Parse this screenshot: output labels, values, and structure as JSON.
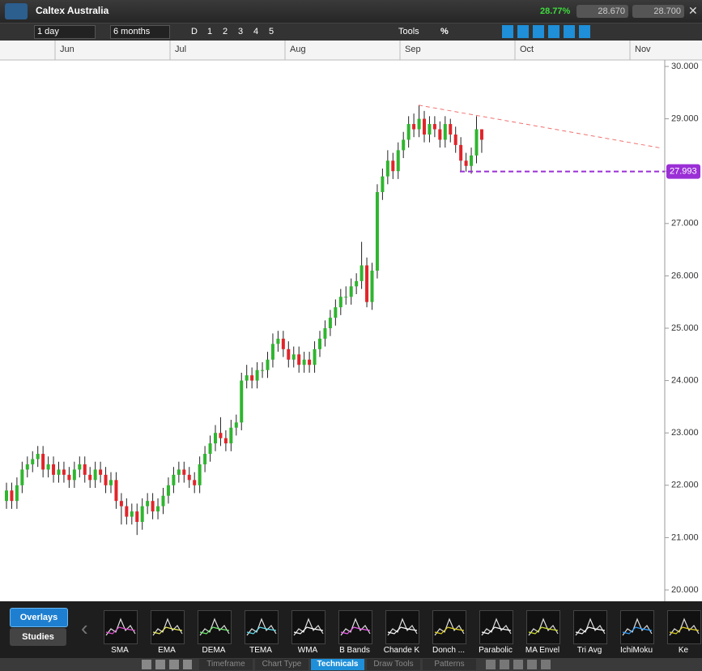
{
  "header": {
    "title": "Caltex Australia",
    "change": "28.77%",
    "bid": "28.670",
    "ask": "28.700"
  },
  "toolbar": {
    "interval": "1 day",
    "range": "6 months",
    "periods": [
      "D",
      "1",
      "2",
      "3",
      "4",
      "5"
    ],
    "tools": "Tools",
    "percent": "%"
  },
  "chart_data": {
    "type": "candlestick",
    "x_labels": [
      "Jun",
      "Jul",
      "Aug",
      "Sep",
      "Oct",
      "Nov"
    ],
    "ylim": [
      20,
      30
    ],
    "yticks": [
      {
        "value": 30,
        "label": "30.000"
      },
      {
        "value": 29,
        "label": "29.000"
      },
      {
        "value": 28,
        "label": "28.000"
      },
      {
        "value": 27,
        "label": "27.000"
      },
      {
        "value": 26,
        "label": "26.000"
      },
      {
        "value": 25,
        "label": "25.000"
      },
      {
        "value": 24,
        "label": "24.000"
      },
      {
        "value": 23,
        "label": "23.000"
      },
      {
        "value": 22,
        "label": "22.000"
      },
      {
        "value": 21,
        "label": "21.000"
      },
      {
        "value": 20,
        "label": "20.000"
      }
    ],
    "up_color": "#2fb52f",
    "down_color": "#e0252b",
    "series": [
      {
        "open": [
          21.7,
          21.9,
          21.7,
          22.0,
          22.3,
          22.4,
          22.5,
          22.6,
          22.3,
          22.4,
          22.2,
          22.3,
          22.2,
          22.1,
          22.3,
          22.4,
          22.2,
          22.1,
          22.3,
          22.2,
          22.0,
          22.1,
          21.7,
          21.6,
          21.4,
          21.5,
          21.3,
          21.6,
          21.7,
          21.5,
          21.6,
          21.8,
          22.0,
          22.2,
          22.3,
          22.2,
          22.1,
          22.0,
          22.4,
          22.6,
          22.8,
          23.0,
          22.9,
          22.8,
          23.1,
          23.2,
          24.0,
          24.1,
          24.0,
          24.2,
          24.2,
          24.4,
          24.7,
          24.8,
          24.6,
          24.4,
          24.5,
          24.3,
          24.4,
          24.3,
          24.6,
          24.8,
          25.0,
          25.2,
          25.4,
          25.6,
          25.6,
          25.8,
          25.9,
          26.2,
          25.5,
          26.1,
          27.6,
          27.9,
          28.2,
          28.0,
          28.4,
          28.6,
          28.9,
          28.8,
          29.0,
          28.7,
          28.9,
          28.8,
          28.6,
          28.9,
          28.7,
          28.5,
          28.2,
          28.1,
          28.3,
          28.8
        ],
        "high": [
          22.05,
          22.05,
          22.15,
          22.45,
          22.55,
          22.65,
          22.75,
          22.75,
          22.55,
          22.55,
          22.45,
          22.45,
          22.35,
          22.45,
          22.55,
          22.55,
          22.35,
          22.45,
          22.45,
          22.35,
          22.25,
          22.25,
          21.85,
          21.75,
          21.65,
          21.65,
          21.75,
          21.85,
          21.85,
          21.75,
          21.95,
          22.15,
          22.35,
          22.45,
          22.45,
          22.35,
          22.25,
          22.55,
          22.75,
          22.95,
          23.15,
          23.3,
          23.05,
          23.25,
          23.35,
          24.15,
          24.3,
          24.25,
          24.35,
          24.35,
          24.55,
          24.9,
          24.95,
          24.95,
          24.75,
          24.65,
          24.65,
          24.55,
          24.55,
          24.75,
          24.95,
          25.15,
          25.35,
          25.55,
          25.75,
          25.8,
          25.95,
          26.05,
          26.65,
          26.35,
          26.25,
          27.75,
          28.05,
          28.4,
          28.35,
          28.55,
          28.75,
          29.05,
          29.1,
          29.26,
          29.15,
          29.05,
          29.05,
          28.95,
          29.05,
          29.0,
          28.85,
          28.65,
          28.35,
          28.45,
          29.05,
          28.75
        ],
        "low": [
          21.55,
          21.55,
          21.55,
          21.85,
          22.15,
          22.25,
          22.35,
          22.15,
          22.15,
          22.05,
          22.05,
          22.05,
          21.95,
          21.95,
          22.15,
          22.05,
          21.95,
          21.95,
          22.05,
          21.85,
          21.85,
          21.55,
          21.25,
          21.25,
          21.25,
          21.05,
          21.15,
          21.45,
          21.35,
          21.35,
          21.45,
          21.65,
          21.85,
          22.05,
          22.05,
          21.95,
          21.85,
          21.85,
          22.25,
          22.45,
          22.65,
          22.75,
          22.65,
          22.65,
          22.95,
          23.05,
          23.85,
          23.85,
          23.85,
          24.05,
          24.05,
          24.25,
          24.55,
          24.45,
          24.25,
          24.25,
          24.15,
          24.15,
          24.15,
          24.15,
          24.45,
          24.65,
          24.85,
          25.05,
          25.25,
          25.45,
          25.45,
          25.65,
          25.75,
          25.4,
          25.35,
          25.95,
          27.45,
          27.75,
          27.85,
          27.85,
          28.25,
          28.45,
          28.65,
          28.65,
          28.55,
          28.55,
          28.65,
          28.45,
          28.45,
          28.55,
          28.35,
          28.0,
          27.99,
          27.95,
          28.15,
          28.35
        ],
        "close": [
          21.9,
          21.7,
          22.0,
          22.3,
          22.4,
          22.5,
          22.6,
          22.3,
          22.4,
          22.2,
          22.3,
          22.2,
          22.1,
          22.3,
          22.4,
          22.2,
          22.1,
          22.3,
          22.2,
          22.0,
          22.1,
          21.7,
          21.6,
          21.4,
          21.5,
          21.3,
          21.6,
          21.7,
          21.5,
          21.6,
          21.8,
          22.0,
          22.2,
          22.3,
          22.2,
          22.1,
          22.0,
          22.4,
          22.6,
          22.8,
          23.0,
          22.9,
          22.8,
          23.1,
          23.2,
          24.0,
          24.1,
          24.0,
          24.2,
          24.2,
          24.4,
          24.7,
          24.8,
          24.6,
          24.4,
          24.5,
          24.3,
          24.4,
          24.3,
          24.6,
          24.8,
          25.0,
          25.2,
          25.4,
          25.6,
          25.6,
          25.8,
          25.9,
          26.2,
          25.5,
          26.1,
          27.6,
          27.9,
          28.2,
          28.0,
          28.4,
          28.6,
          28.9,
          28.8,
          29.0,
          28.7,
          28.9,
          28.8,
          28.6,
          28.9,
          28.7,
          28.5,
          28.2,
          28.1,
          28.3,
          28.8,
          28.6
        ]
      }
    ],
    "trendline": {
      "values": [
        29.26,
        28.44
      ],
      "color": "#f07070"
    },
    "level": {
      "value": 27.993,
      "color": "#9b2fd6"
    }
  },
  "panel": {
    "buttons": [
      "Overlays",
      "Studies"
    ],
    "indicators": [
      "SMA",
      "EMA",
      "DEMA",
      "TEMA",
      "WMA",
      "B Bands",
      "Chande K",
      "Donch ...",
      "Parabolic",
      "MA Envel",
      "Tri Avg",
      "IchiMoku",
      "Ke"
    ],
    "tabs": [
      "Timeframe",
      "Chart Type",
      "Technicals",
      "Draw Tools",
      "Patterns"
    ],
    "active_tab": 2
  }
}
